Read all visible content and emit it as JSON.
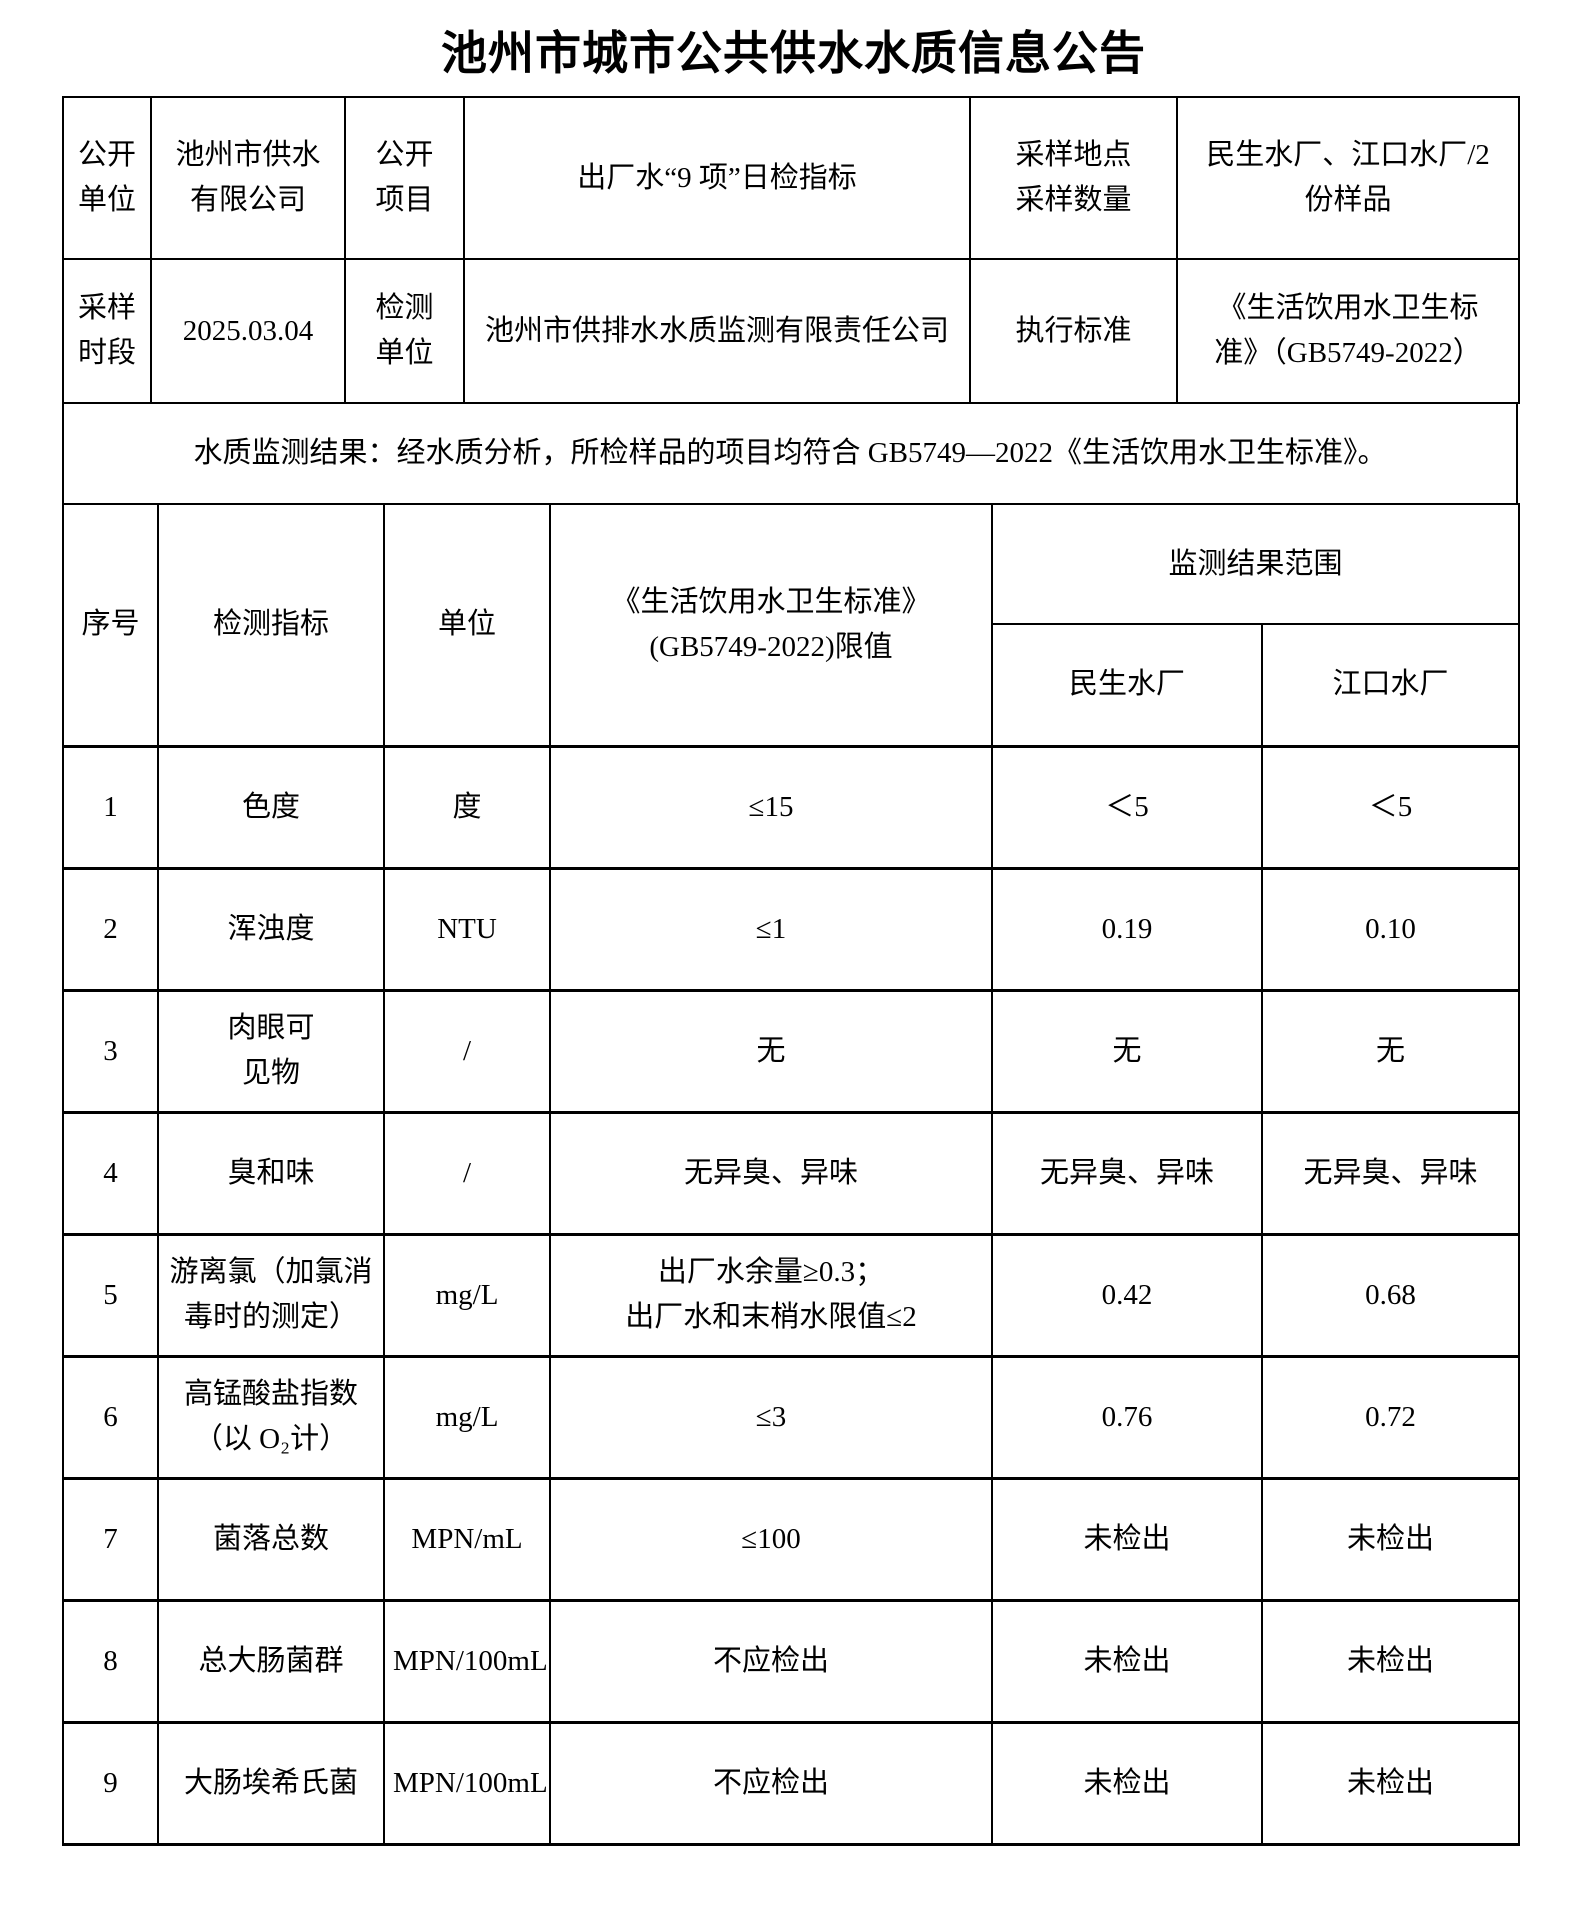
{
  "title": "池州市城市公共供水水质信息公告",
  "info_table": {
    "open_unit_label": "公开\n单位",
    "open_unit_value": "池州市供水\n有限公司",
    "open_item_label": "公开\n项目",
    "open_item_value": "出厂水“9 项”日检指标",
    "sampling_label": "采样地点\n采样数量",
    "sampling_value": "民生水厂、江口水厂/2\n份样品",
    "period_label": "采样\n时段",
    "period_value": "2025.03.04",
    "test_unit_label": "检测\n单位",
    "test_unit_value": "池州市供排水水质监测有限责任公司",
    "standard_label": "执行标准",
    "standard_value": "《生活饮用水卫生标\n准》（GB5749-2022）"
  },
  "note": "水质监测结果：经水质分析，所检样品的项目均符合 GB5749—2022《生活饮用水卫生标准》。",
  "result_table": {
    "headers": {
      "no": "序号",
      "indicator": "检测指标",
      "unit": "单位",
      "limit": "《生活饮用水卫生标准》\n(GB5749-2022)限值",
      "result_range": "监测结果范围",
      "plant1": "民生水厂",
      "plant2": "江口水厂"
    },
    "rows": [
      [
        "1",
        "色度",
        "度",
        "≤15",
        "＜5",
        "＜5"
      ],
      [
        "2",
        "浑浊度",
        "NTU",
        "≤1",
        "0.19",
        "0.10"
      ],
      [
        "3",
        "肉眼可\n见物",
        "/",
        "无",
        "无",
        "无"
      ],
      [
        "4",
        "臭和味",
        "/",
        "无异臭、异味",
        "无异臭、异味",
        "无异臭、异味"
      ],
      [
        "5",
        "游离氯（加氯消\n毒时的测定）",
        "mg/L",
        "出厂水余量≥0.3；\n出厂水和末梢水限值≤2",
        "0.42",
        "0.68"
      ],
      [
        "6",
        "高锰酸盐指数\n（以 O₂计）",
        "mg/L",
        "≤3",
        "0.76",
        "0.72"
      ],
      [
        "7",
        "菌落总数",
        "MPN/mL",
        "≤100",
        "未检出",
        "未检出"
      ],
      [
        "8",
        "总大肠菌群",
        "MPN/100mL",
        "不应检出",
        "未检出",
        "未检出"
      ],
      [
        "9",
        "大肠埃希氏菌",
        "MPN/100mL",
        "不应检出",
        "未检出",
        "未检出"
      ]
    ]
  }
}
